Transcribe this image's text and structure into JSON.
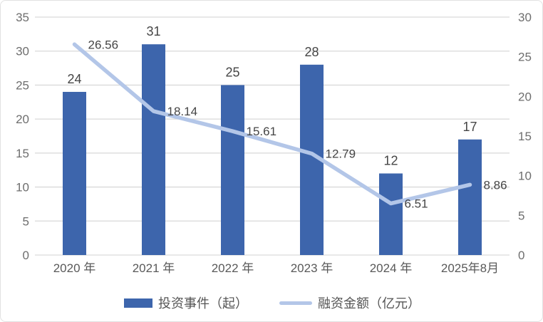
{
  "chart_data": {
    "type": "bar+line",
    "categories": [
      "2020 年",
      "2021 年",
      "2022 年",
      "2023 年",
      "2024 年",
      "2025年8月"
    ],
    "series": [
      {
        "name": "投资事件（起）",
        "type": "bar",
        "axis": "left",
        "values": [
          24,
          31,
          25,
          28,
          12,
          17
        ],
        "color": "#3D65AC"
      },
      {
        "name": "融资金额（亿元）",
        "type": "line",
        "axis": "right",
        "values": [
          26.56,
          18.14,
          15.61,
          12.79,
          6.51,
          8.86
        ],
        "color": "#B3C6E8"
      }
    ],
    "left_axis": {
      "min": 0,
      "max": 35,
      "ticks": [
        0,
        5,
        10,
        15,
        20,
        25,
        30,
        35
      ]
    },
    "right_axis": {
      "min": 0,
      "max": 30,
      "ticks": [
        0,
        5,
        10,
        15,
        20,
        25,
        30
      ]
    },
    "grid": true,
    "legend_position": "bottom",
    "title": ""
  },
  "legend": {
    "bar_label": "投资事件（起）",
    "line_label": "融资金额（亿元）"
  },
  "colors": {
    "bar": "#3D65AC",
    "line": "#B3C6E8",
    "gridline": "#D9D9D9",
    "tick_text": "#6E6E6E",
    "data_label_text": "#454545",
    "category_text": "#595959",
    "border": "#E2E2E2",
    "background": "#FFFFFF"
  }
}
